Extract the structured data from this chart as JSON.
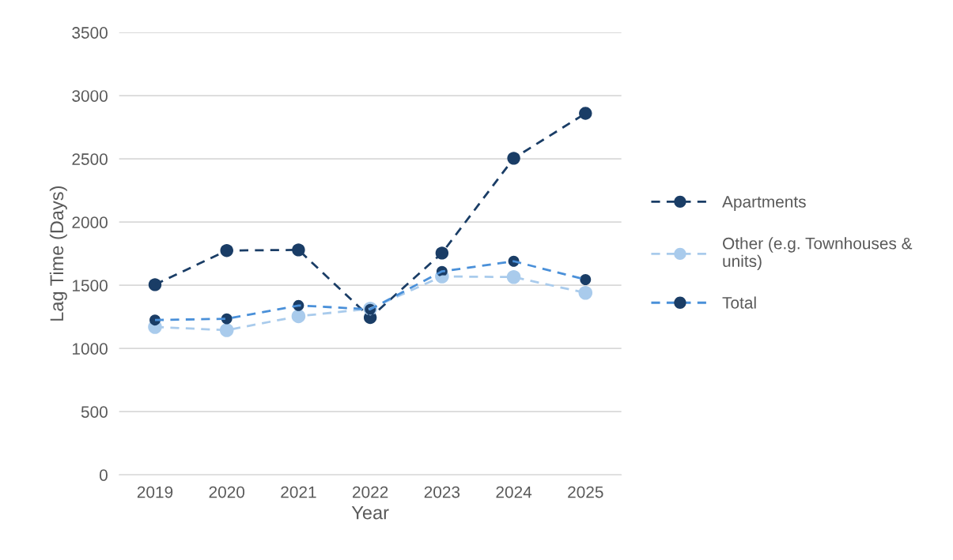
{
  "chart_data": {
    "type": "line",
    "xlabel": "Year",
    "ylabel": "Lag Time (Days)",
    "categories": [
      "2019",
      "2020",
      "2021",
      "2022",
      "2023",
      "2024",
      "2025"
    ],
    "series": [
      {
        "name": "Apartments",
        "color": "#1a3d66",
        "values": [
          1505,
          1775,
          1780,
          1245,
          1755,
          2505,
          2860
        ]
      },
      {
        "name": "Other (e.g. Townhouses & units)",
        "color": "#a9cbec",
        "values": [
          1170,
          1145,
          1255,
          1315,
          1570,
          1565,
          1440
        ]
      },
      {
        "name": "Total",
        "color": "#4a90d9",
        "colors": [
          "#1a3d66",
          "#1a3d66",
          "#1a3d66",
          "#1a3d66",
          "#1a3d66",
          "#1a3d66",
          "#1a3d66"
        ],
        "values": [
          1225,
          1235,
          1340,
          1310,
          1610,
          1690,
          1545
        ]
      }
    ],
    "ylim": [
      0,
      3500
    ],
    "yticks": [
      0,
      500,
      1000,
      1500,
      2000,
      2500,
      3000,
      3500
    ],
    "grid": "y",
    "legend": "right",
    "marker": "circle",
    "line_style": "dashed"
  }
}
